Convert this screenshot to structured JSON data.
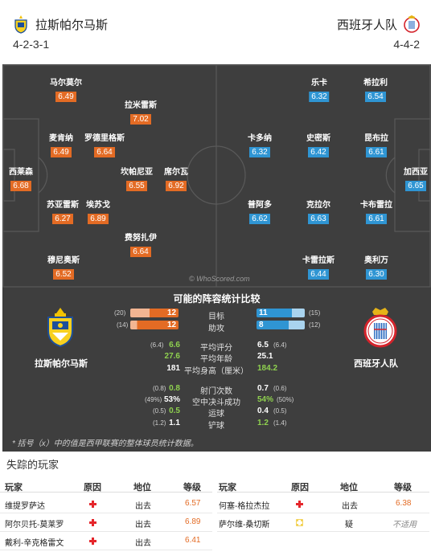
{
  "header": {
    "home_team": "拉斯帕尔马斯",
    "away_team": "西班牙人队",
    "home_formation": "4-2-3-1",
    "away_formation": "4-4-2"
  },
  "colors": {
    "home_accent": "#e36b24",
    "away_accent": "#2f95d3",
    "pitch": "#3e3e3e"
  },
  "home_players": [
    {
      "name": "马尔莫尔",
      "rating": "6.49"
    },
    {
      "name": "拉米雷斯",
      "rating": "7.02"
    },
    {
      "name": "麦肯纳",
      "rating": "6.49"
    },
    {
      "name": "罗德里格斯",
      "rating": "6.64"
    },
    {
      "name": "西莱森",
      "rating": "6.68"
    },
    {
      "name": "坎帕尼亚",
      "rating": "6.55"
    },
    {
      "name": "席尔瓦",
      "rating": "6.92"
    },
    {
      "name": "苏亚雷斯",
      "rating": "6.27"
    },
    {
      "name": "埃苏戈",
      "rating": "6.89"
    },
    {
      "name": "费努扎伊",
      "rating": "6.64"
    },
    {
      "name": "穆尼奥斯",
      "rating": "6.52"
    }
  ],
  "away_players": [
    {
      "name": "乐卡",
      "rating": "6.32"
    },
    {
      "name": "希拉利",
      "rating": "6.54"
    },
    {
      "name": "卡多纳",
      "rating": "6.32"
    },
    {
      "name": "史密斯",
      "rating": "6.42"
    },
    {
      "name": "昆布拉",
      "rating": "6.61"
    },
    {
      "name": "加西亚",
      "rating": "6.65"
    },
    {
      "name": "普阿多",
      "rating": "6.62"
    },
    {
      "name": "克拉尔",
      "rating": "6.63"
    },
    {
      "name": "卡布雷拉",
      "rating": "6.61"
    },
    {
      "name": "卡雷拉斯",
      "rating": "6.44"
    },
    {
      "name": "奥利万",
      "rating": "6.30"
    }
  ],
  "watermark": "© WhoScored.com",
  "comparison": {
    "title": "可能的阵容统计比较",
    "home_label": "拉斯帕尔马斯",
    "away_label": "西班牙人队",
    "bars": [
      {
        "label": "目标",
        "home": "12",
        "home_prev": "(20)",
        "away": "11",
        "away_prev": "(15)",
        "home_val": 12,
        "home_max": 20,
        "away_val": 11,
        "away_max": 15
      },
      {
        "label": "助攻",
        "home": "12",
        "home_prev": "(14)",
        "away": "8",
        "away_prev": "(12)",
        "home_val": 12,
        "home_max": 14,
        "away_val": 8,
        "away_max": 12
      }
    ],
    "rows1": [
      {
        "label": "平均评分",
        "home": "6.6",
        "home_prev": "(6.4)",
        "away": "6.5",
        "away_prev": "(6.4)"
      },
      {
        "label": "平均年龄",
        "home": "27.6",
        "home_prev": "",
        "away": "25.1",
        "away_prev": ""
      },
      {
        "label": "平均身高（厘米）",
        "home": "181",
        "home_prev": "",
        "away": "184.2",
        "away_prev": ""
      }
    ],
    "rows2": [
      {
        "label": "射门次数",
        "home": "0.8",
        "home_prev": "(0.8)",
        "away": "0.7",
        "away_prev": "(0.6)"
      },
      {
        "label": "空中决斗成功",
        "home": "53%",
        "home_prev": "(49%)",
        "away": "54%",
        "away_prev": "(50%)"
      },
      {
        "label": "运球",
        "home": "0.5",
        "home_prev": "(0.5)",
        "away": "0.4",
        "away_prev": "(0.5)"
      },
      {
        "label": "铲球",
        "home": "1.1",
        "home_prev": "(1.2)",
        "away": "1.2",
        "away_prev": "(1.4)"
      }
    ],
    "note": "* 括号（x）中的值是西甲联赛的整体球员统计数据。"
  },
  "missing": {
    "title": "失踪的玩家",
    "headers": [
      "玩家",
      "原因",
      "地位",
      "等级"
    ],
    "left": [
      {
        "player": "维提罗萨达",
        "reason": "injury",
        "status": "出去",
        "rating": "6.57"
      },
      {
        "player": "阿尔贝托-莫莱罗",
        "reason": "injury",
        "status": "出去",
        "rating": "6.89"
      },
      {
        "player": "戴利-辛克格雷文",
        "reason": "injury",
        "status": "出去",
        "rating": "6.41"
      }
    ],
    "right": [
      {
        "player": "何塞-格拉杰拉",
        "reason": "injury",
        "status": "出去",
        "rating": "6.38"
      },
      {
        "player": "萨尔维-桑切斯",
        "reason": "doubtful",
        "status": "疑",
        "rating": "不适用"
      }
    ]
  }
}
